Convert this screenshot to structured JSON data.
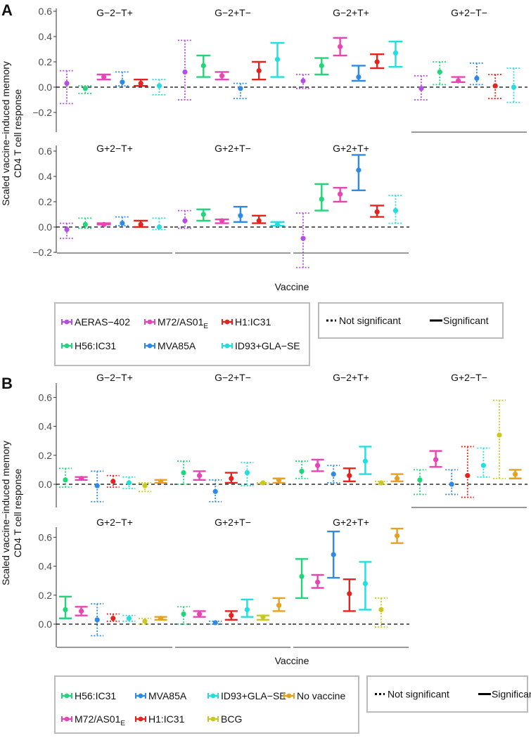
{
  "chart_data": [
    {
      "type": "errorbar",
      "panel_label": "A",
      "ylabel": [
        "Scaled vaccine−induced memory",
        "CD4 T cell response"
      ],
      "xlabel": "Vaccine",
      "ylim": [
        -0.33,
        0.62
      ],
      "yticks": [
        "0.6",
        "0.4",
        "0.2",
        "0.0",
        "−0.2"
      ],
      "ytick_values": [
        0.6,
        0.4,
        0.2,
        0.0,
        -0.2
      ],
      "reference_line": 0,
      "vaccines": [
        {
          "name": "AERAS−402",
          "sub": "",
          "color": "#b44ee8"
        },
        {
          "name": "H56:IC31",
          "sub": "",
          "color": "#22d47a"
        },
        {
          "name": "M72/AS01",
          "sub": "E",
          "color": "#e845b4"
        },
        {
          "name": "MVA85A",
          "sub": "",
          "color": "#2f8ae6"
        },
        {
          "name": "H1:IC31",
          "sub": "",
          "color": "#e8201e"
        },
        {
          "name": "ID93+GLA−SE",
          "sub": "",
          "color": "#22dede"
        }
      ],
      "legend_order": [
        0,
        2,
        4,
        1,
        3,
        5
      ],
      "point_fields": [
        "mean",
        "lower",
        "upper",
        "significant"
      ],
      "facets": [
        {
          "title": "G−2−T+",
          "points": [
            [
              0.03,
              -0.13,
              0.13,
              0
            ],
            [
              -0.01,
              -0.05,
              0.01,
              0
            ],
            [
              0.08,
              0.06,
              0.1,
              1
            ],
            [
              0.04,
              0.01,
              0.12,
              0
            ],
            [
              0.03,
              0.01,
              0.06,
              1
            ],
            [
              0.01,
              -0.06,
              0.06,
              0
            ]
          ]
        },
        {
          "title": "G−2+T−",
          "points": [
            [
              0.12,
              -0.1,
              0.37,
              0
            ],
            [
              0.17,
              0.08,
              0.25,
              1
            ],
            [
              0.09,
              0.06,
              0.12,
              1
            ],
            [
              -0.01,
              -0.09,
              0.03,
              0
            ],
            [
              0.13,
              0.06,
              0.2,
              1
            ],
            [
              0.22,
              0.08,
              0.35,
              1
            ]
          ]
        },
        {
          "title": "G−2+T+",
          "points": [
            [
              0.05,
              -0.01,
              0.1,
              0
            ],
            [
              0.17,
              0.1,
              0.23,
              1
            ],
            [
              0.32,
              0.25,
              0.39,
              1
            ],
            [
              0.08,
              0.05,
              0.17,
              1
            ],
            [
              0.2,
              0.15,
              0.26,
              1
            ],
            [
              0.27,
              0.16,
              0.36,
              1
            ]
          ]
        },
        {
          "title": "G+2−T−",
          "points": [
            [
              -0.01,
              -0.1,
              0.09,
              0
            ],
            [
              0.12,
              0.02,
              0.2,
              0
            ],
            [
              0.05,
              0.04,
              0.08,
              1
            ],
            [
              0.07,
              0.02,
              0.19,
              0
            ],
            [
              0.01,
              -0.09,
              0.1,
              0
            ],
            [
              0.0,
              -0.12,
              0.15,
              0
            ]
          ]
        },
        {
          "title": "G+2−T+",
          "points": [
            [
              -0.02,
              -0.09,
              0.03,
              0
            ],
            [
              0.02,
              -0.01,
              0.07,
              0
            ],
            [
              0.02,
              0.02,
              0.03,
              1
            ],
            [
              0.03,
              0.01,
              0.08,
              0
            ],
            [
              0.02,
              0.0,
              0.05,
              1
            ],
            [
              0.0,
              -0.02,
              0.07,
              0
            ]
          ]
        },
        {
          "title": "G+2+T−",
          "points": [
            [
              0.05,
              -0.01,
              0.13,
              0
            ],
            [
              0.1,
              0.05,
              0.14,
              1
            ],
            [
              0.05,
              0.03,
              0.06,
              1
            ],
            [
              0.09,
              0.04,
              0.16,
              1
            ],
            [
              0.05,
              0.03,
              0.09,
              1
            ],
            [
              0.02,
              0.01,
              0.04,
              1
            ]
          ]
        },
        {
          "title": "G+2+T+",
          "points": [
            [
              -0.09,
              -0.32,
              0.11,
              0
            ],
            [
              0.22,
              0.13,
              0.34,
              1
            ],
            [
              0.26,
              0.2,
              0.31,
              1
            ],
            [
              0.45,
              0.29,
              0.57,
              1
            ],
            [
              0.12,
              0.08,
              0.17,
              1
            ],
            [
              0.13,
              0.03,
              0.25,
              0
            ]
          ]
        }
      ],
      "linetype_legend": {
        "not_significant": "Not significant",
        "significant": "Significant"
      }
    },
    {
      "type": "errorbar",
      "panel_label": "B",
      "ylabel": [
        "Scaled vaccine−induced memory",
        "CD4 T cell response"
      ],
      "xlabel": "Vaccine",
      "ylim": [
        -0.15,
        0.67
      ],
      "yticks": [
        "0.6",
        "0.4",
        "0.2",
        "0.0"
      ],
      "ytick_values": [
        0.6,
        0.4,
        0.2,
        0.0
      ],
      "reference_line": 0,
      "vaccines": [
        {
          "name": "H56:IC31",
          "sub": "",
          "color": "#22d47a"
        },
        {
          "name": "M72/AS01",
          "sub": "E",
          "color": "#e845b4"
        },
        {
          "name": "MVA85A",
          "sub": "",
          "color": "#2f8ae6"
        },
        {
          "name": "H1:IC31",
          "sub": "",
          "color": "#e8201e"
        },
        {
          "name": "ID93+GLA−SE",
          "sub": "",
          "color": "#22dede"
        },
        {
          "name": "BCG",
          "sub": "",
          "color": "#c8c820"
        },
        {
          "name": "No vaccine",
          "sub": "",
          "color": "#e8a022"
        }
      ],
      "legend_order": [
        0,
        2,
        4,
        6,
        1,
        3,
        5
      ],
      "point_fields": [
        "mean",
        "lower",
        "upper",
        "significant"
      ],
      "facets": [
        {
          "title": "G−2−T+",
          "points": [
            [
              0.03,
              -0.02,
              0.11,
              0
            ],
            [
              0.04,
              0.03,
              0.05,
              1
            ],
            [
              -0.01,
              -0.12,
              0.09,
              0
            ],
            [
              0.02,
              -0.02,
              0.06,
              0
            ],
            [
              0.01,
              -0.03,
              0.05,
              0
            ],
            [
              -0.01,
              -0.05,
              0.01,
              0
            ],
            [
              0.02,
              0.01,
              0.03,
              1
            ]
          ]
        },
        {
          "title": "G−2+T−",
          "points": [
            [
              0.08,
              0.0,
              0.16,
              0
            ],
            [
              0.06,
              0.03,
              0.09,
              1
            ],
            [
              -0.05,
              -0.12,
              0.03,
              0
            ],
            [
              0.04,
              0.01,
              0.08,
              1
            ],
            [
              0.08,
              -0.01,
              0.15,
              0
            ],
            [
              0.01,
              0.0,
              0.01,
              0
            ],
            [
              0.03,
              0.01,
              0.04,
              1
            ]
          ]
        },
        {
          "title": "G−2+T+",
          "points": [
            [
              0.09,
              0.04,
              0.16,
              0
            ],
            [
              0.13,
              0.09,
              0.17,
              1
            ],
            [
              0.07,
              0.01,
              0.13,
              0
            ],
            [
              0.06,
              0.02,
              0.11,
              1
            ],
            [
              0.16,
              0.07,
              0.26,
              1
            ],
            [
              0.01,
              0.0,
              0.02,
              0
            ],
            [
              0.04,
              0.02,
              0.07,
              1
            ]
          ]
        },
        {
          "title": "G+2−T−",
          "points": [
            [
              0.03,
              -0.07,
              0.1,
              0
            ],
            [
              0.17,
              0.12,
              0.23,
              1
            ],
            [
              0.0,
              -0.07,
              0.1,
              0
            ],
            [
              0.06,
              -0.09,
              0.26,
              0
            ],
            [
              0.13,
              0.05,
              0.25,
              0
            ],
            [
              0.34,
              0.04,
              0.58,
              0
            ],
            [
              0.07,
              0.04,
              0.1,
              1
            ]
          ]
        },
        {
          "title": "G+2−T+",
          "points": [
            [
              0.1,
              0.04,
              0.19,
              1
            ],
            [
              0.09,
              0.06,
              0.12,
              1
            ],
            [
              0.03,
              -0.08,
              0.14,
              0
            ],
            [
              0.04,
              0.02,
              0.07,
              0
            ],
            [
              0.04,
              0.02,
              0.06,
              0
            ],
            [
              0.02,
              0.0,
              0.04,
              0
            ],
            [
              0.04,
              0.03,
              0.05,
              1
            ]
          ]
        },
        {
          "title": "G+2+T−",
          "points": [
            [
              0.07,
              0.0,
              0.12,
              0
            ],
            [
              0.07,
              0.05,
              0.09,
              1
            ],
            [
              0.01,
              0.0,
              0.02,
              0
            ],
            [
              0.06,
              0.03,
              0.09,
              1
            ],
            [
              0.1,
              0.05,
              0.17,
              1
            ],
            [
              0.05,
              0.03,
              0.06,
              1
            ],
            [
              0.13,
              0.09,
              0.18,
              1
            ]
          ]
        },
        {
          "title": "G+2+T+",
          "points": [
            [
              0.33,
              0.18,
              0.45,
              1
            ],
            [
              0.29,
              0.25,
              0.34,
              1
            ],
            [
              0.48,
              0.32,
              0.64,
              1
            ],
            [
              0.21,
              0.09,
              0.31,
              1
            ],
            [
              0.28,
              0.1,
              0.43,
              1
            ],
            [
              0.1,
              -0.02,
              0.18,
              0
            ],
            [
              0.61,
              0.56,
              0.66,
              1
            ]
          ]
        }
      ],
      "linetype_legend": {
        "not_significant": "Not significant",
        "significant": "Significant"
      }
    }
  ]
}
